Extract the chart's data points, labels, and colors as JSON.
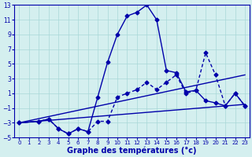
{
  "background_color": "#d4efef",
  "grid_color": "#a8d8d8",
  "line_color": "#0000aa",
  "xlabel": "Graphe des températures (°c)",
  "xlabel_fontsize": 7,
  "xlim": [
    -0.5,
    23.5
  ],
  "ylim": [
    -5,
    13
  ],
  "yticks": [
    -5,
    -3,
    -1,
    1,
    3,
    5,
    7,
    9,
    11,
    13
  ],
  "xticks": [
    0,
    1,
    2,
    3,
    4,
    5,
    6,
    7,
    8,
    9,
    10,
    11,
    12,
    13,
    14,
    15,
    16,
    17,
    18,
    19,
    20,
    21,
    22,
    23
  ],
  "curve1_x": [
    0,
    2,
    3,
    4,
    5,
    6,
    7,
    8,
    9,
    10,
    11,
    12,
    13,
    14,
    15,
    16,
    17,
    18,
    19,
    20,
    21,
    22,
    23
  ],
  "curve1_y": [
    -3,
    -2.8,
    -2.5,
    -3.8,
    -4.5,
    -3.8,
    -4.2,
    0.5,
    5.2,
    9,
    11.5,
    12,
    13,
    11,
    4.1,
    3.8,
    1.2,
    1.4,
    0.0,
    -0.3,
    -0.7,
    1.0,
    -0.7
  ],
  "curve2_x": [
    0,
    2,
    3,
    4,
    5,
    6,
    7,
    8,
    9,
    10,
    11,
    12,
    13,
    14,
    15,
    16,
    17,
    18,
    19,
    20,
    21,
    22,
    23
  ],
  "curve2_y": [
    -3,
    -2.8,
    -2.5,
    -3.8,
    -4.5,
    -3.8,
    -4.2,
    -2.8,
    -2.8,
    0.5,
    1.0,
    1.5,
    2.5,
    1.5,
    2.5,
    3.5,
    1.0,
    1.4,
    6.5,
    3.5,
    -0.7,
    1.0,
    -0.7
  ],
  "trend1_x": [
    0,
    23
  ],
  "trend1_y": [
    -3,
    -0.5
  ],
  "trend2_x": [
    0,
    23
  ],
  "trend2_y": [
    -3,
    3.5
  ],
  "marker_size": 2.5,
  "linewidth": 1.0
}
